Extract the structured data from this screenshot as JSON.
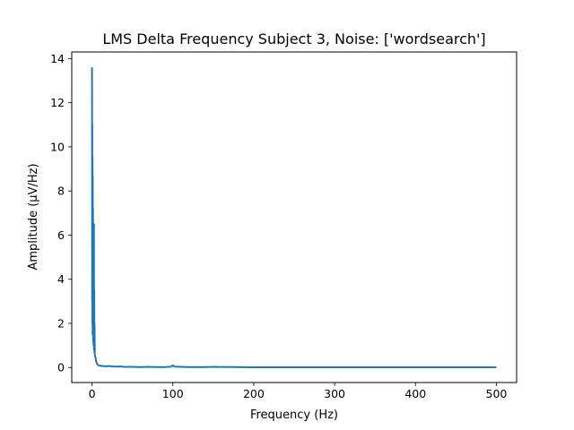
{
  "chart_data": {
    "type": "line",
    "title": "LMS Delta Frequency Subject 3, Noise: ['wordsearch']",
    "xlabel": "Frequency (Hz)",
    "ylabel": "Amplitude (μV/Hz)",
    "xlim": [
      -25,
      525
    ],
    "ylim": [
      -0.68,
      14.3
    ],
    "xticks": [
      0,
      100,
      200,
      300,
      400,
      500
    ],
    "xtick_labels": [
      "0",
      "100",
      "200",
      "300",
      "400",
      "500"
    ],
    "yticks": [
      0,
      2,
      4,
      6,
      8,
      10,
      12,
      14
    ],
    "ytick_labels": [
      "0",
      "2",
      "4",
      "6",
      "8",
      "10",
      "12",
      "14"
    ],
    "grid": false,
    "legend": "none",
    "series": [
      {
        "color": "#1f77b4",
        "x": [
          0,
          0.1,
          0.2,
          0.35,
          0.5,
          0.65,
          0.8,
          0.95,
          1.1,
          1.25,
          1.4,
          1.55,
          1.7,
          1.85,
          2.0,
          2.15,
          2.3,
          2.45,
          2.6,
          2.8,
          3.0,
          3.2,
          3.5,
          4,
          4.5,
          5,
          6,
          7,
          8,
          10,
          12,
          15,
          18,
          20,
          25,
          30,
          35,
          40,
          50,
          60,
          70,
          80,
          90,
          98,
          100,
          102,
          110,
          120,
          130,
          140,
          150,
          200,
          250,
          300,
          350,
          400,
          450,
          500
        ],
        "y": [
          13.6,
          12.5,
          3.0,
          11.0,
          2.0,
          9.6,
          1.5,
          8.7,
          2.5,
          7.2,
          1.2,
          6.2,
          1.8,
          5.0,
          1.0,
          4.2,
          1.5,
          6.5,
          0.8,
          3.5,
          0.7,
          2.0,
          0.6,
          0.5,
          0.45,
          0.3,
          0.2,
          0.12,
          0.1,
          0.08,
          0.07,
          0.06,
          0.05,
          0.07,
          0.05,
          0.04,
          0.05,
          0.03,
          0.03,
          0.02,
          0.03,
          0.02,
          0.02,
          0.04,
          0.1,
          0.04,
          0.03,
          0.02,
          0.02,
          0.02,
          0.03,
          0.01,
          0.01,
          0.01,
          0.01,
          0.01,
          0.01,
          0.01
        ]
      }
    ]
  }
}
